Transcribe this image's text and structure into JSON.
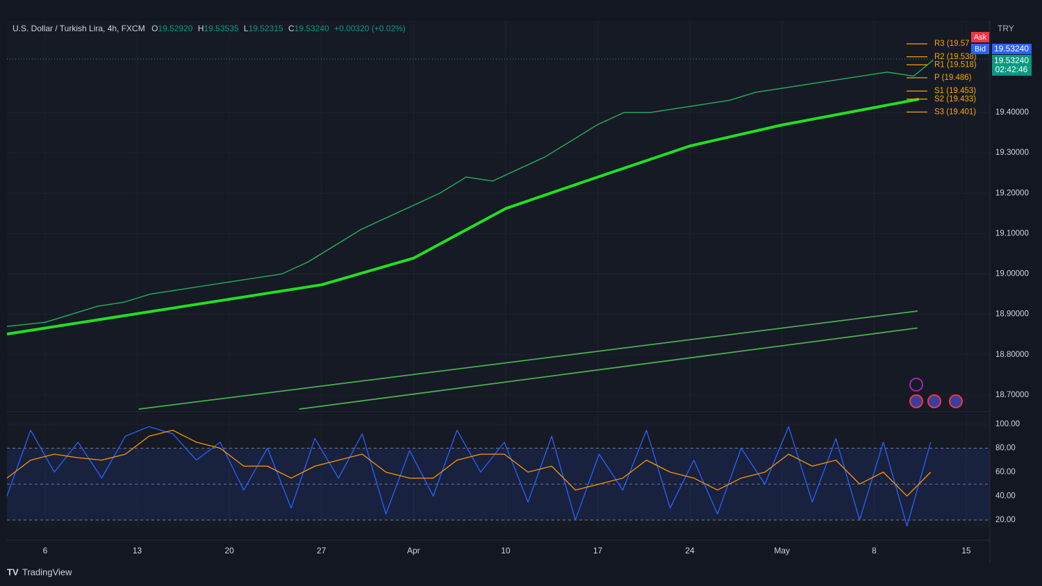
{
  "header": {
    "symbol": "U.S. Dollar / Turkish Lira, 4h, FXCM",
    "o_label": "O",
    "open": "19.52920",
    "h_label": "H",
    "high": "19.53535",
    "l_label": "L",
    "low": "19.52315",
    "c_label": "C",
    "close": "19.53240",
    "change": "+0.00320 (+0.02%)"
  },
  "price_panel": {
    "currency": "TRY",
    "ask": "Ask",
    "bid": "Bid",
    "bid_price": "19.53240",
    "countdown": "02:42:46"
  },
  "footer": {
    "brand": "TradingView"
  },
  "chart_data": [
    {
      "type": "line",
      "grid": true,
      "xlim": [
        3.1,
        77.8
      ],
      "ylim": [
        18.662,
        19.627
      ],
      "xticks": [
        {
          "value": 6,
          "label": "6"
        },
        {
          "value": 13,
          "label": "13"
        },
        {
          "value": 20,
          "label": "20"
        },
        {
          "value": 27,
          "label": "27"
        },
        {
          "value": 34,
          "label": "Apr"
        },
        {
          "value": 41,
          "label": "10"
        },
        {
          "value": 48,
          "label": "17"
        },
        {
          "value": 55,
          "label": "24"
        },
        {
          "value": 62,
          "label": "May"
        },
        {
          "value": 69,
          "label": "8"
        },
        {
          "value": 76,
          "label": "15"
        }
      ],
      "yticks": [
        {
          "value": 18.7,
          "label": "18.70000"
        },
        {
          "value": 18.8,
          "label": "18.80000"
        },
        {
          "value": 18.9,
          "label": "18.90000"
        },
        {
          "value": 19.0,
          "label": "19.00000"
        },
        {
          "value": 19.1,
          "label": "19.10000"
        },
        {
          "value": 19.2,
          "label": "19.20000"
        },
        {
          "value": 19.3,
          "label": "19.30000"
        },
        {
          "value": 19.4,
          "label": "19.40000"
        }
      ],
      "last_price": {
        "value": 19.5324,
        "label": "19.53240"
      },
      "series": [
        {
          "color": "#26a65b",
          "line_width": 1.5,
          "x": [
            3.1,
            6,
            8,
            10,
            12,
            14,
            16,
            18,
            20,
            22,
            24,
            26,
            28,
            30,
            32,
            34,
            36,
            38,
            40,
            42,
            44,
            46,
            48,
            50,
            52,
            54,
            56,
            58,
            60,
            62,
            64,
            66,
            68,
            70,
            72,
            73.5
          ],
          "values": [
            18.87,
            18.88,
            18.9,
            18.92,
            18.93,
            18.95,
            18.96,
            18.97,
            18.98,
            18.99,
            19.0,
            19.03,
            19.07,
            19.11,
            19.14,
            19.17,
            19.2,
            19.24,
            19.23,
            19.26,
            19.29,
            19.33,
            19.37,
            19.4,
            19.4,
            19.41,
            19.42,
            19.43,
            19.45,
            19.46,
            19.47,
            19.48,
            19.49,
            19.5,
            19.49,
            19.53
          ]
        },
        {
          "color": "#22e01f",
          "line_width": 4,
          "x": [
            3.1,
            27,
            34,
            41,
            48,
            55,
            62,
            69,
            72.4
          ],
          "values": [
            18.851,
            18.973,
            19.039,
            19.162,
            19.24,
            19.317,
            19.369,
            19.412,
            19.433
          ]
        },
        {
          "color": "#4caf50",
          "line_width": 1.8,
          "x": [
            13.1,
            72.3
          ],
          "values": [
            18.665,
            18.908
          ]
        },
        {
          "color": "#4caf50",
          "line_width": 1.8,
          "x": [
            25.3,
            72.3
          ],
          "values": [
            18.665,
            18.866
          ]
        }
      ],
      "pivots": [
        {
          "label": "R3 (19.57",
          "value": 19.57
        },
        {
          "label": "R2 (19.538)",
          "value": 19.538
        },
        {
          "label": "R1 (19.518)",
          "value": 19.518
        },
        {
          "label": "P (19.486)",
          "value": 19.486
        },
        {
          "label": "S1 (19.453)",
          "value": 19.453
        },
        {
          "label": "S2 (19.433)",
          "value": 19.433
        },
        {
          "label": "S3 (19.401)",
          "value": 19.401
        }
      ]
    },
    {
      "type": "line",
      "grid": true,
      "xlim": [
        3.1,
        77.8
      ],
      "ylim": [
        13.6,
        108.7
      ],
      "yticks": [
        {
          "value": 20,
          "label": "20.00"
        },
        {
          "value": 40,
          "label": "40.00"
        },
        {
          "value": 60,
          "label": "60.00"
        },
        {
          "value": 80,
          "label": "80.00"
        },
        {
          "value": 100,
          "label": "100.00"
        }
      ],
      "band": [
        20,
        80
      ],
      "levels": [
        80,
        50,
        20
      ],
      "series": [
        {
          "color": "#2962ff",
          "line_width": 1.3,
          "x": [
            3.1,
            4.9,
            6.7,
            8.5,
            10.3,
            12.1,
            13.9,
            15.7,
            17.5,
            19.3,
            21.1,
            22.9,
            24.7,
            26.5,
            28.3,
            30.1,
            31.9,
            33.7,
            35.5,
            37.3,
            39.1,
            40.9,
            42.7,
            44.5,
            46.3,
            48.1,
            49.9,
            51.7,
            53.5,
            55.3,
            57.1,
            58.9,
            60.7,
            62.5,
            64.3,
            66.1,
            67.9,
            69.7,
            71.5,
            73.3
          ],
          "values": [
            40,
            95,
            60,
            85,
            55,
            90,
            98,
            92,
            70,
            85,
            45,
            80,
            30,
            88,
            55,
            92,
            25,
            78,
            40,
            95,
            60,
            85,
            35,
            90,
            20,
            75,
            45,
            95,
            30,
            70,
            25,
            80,
            50,
            98,
            35,
            88,
            20,
            85,
            15,
            85
          ]
        },
        {
          "color": "#ff9800",
          "line_width": 1.3,
          "x": [
            3.1,
            4.9,
            6.7,
            8.5,
            10.3,
            12.1,
            13.9,
            15.7,
            17.5,
            19.3,
            21.1,
            22.9,
            24.7,
            26.5,
            28.3,
            30.1,
            31.9,
            33.7,
            35.5,
            37.3,
            39.1,
            40.9,
            42.7,
            44.5,
            46.3,
            48.1,
            49.9,
            51.7,
            53.5,
            55.3,
            57.1,
            58.9,
            60.7,
            62.5,
            64.3,
            66.1,
            67.9,
            69.7,
            71.5,
            73.3
          ],
          "values": [
            55,
            70,
            75,
            72,
            70,
            75,
            90,
            95,
            85,
            80,
            65,
            65,
            55,
            65,
            70,
            75,
            60,
            55,
            55,
            70,
            75,
            75,
            60,
            65,
            45,
            50,
            55,
            70,
            60,
            55,
            45,
            55,
            60,
            75,
            65,
            70,
            50,
            60,
            40,
            60
          ]
        }
      ]
    }
  ]
}
